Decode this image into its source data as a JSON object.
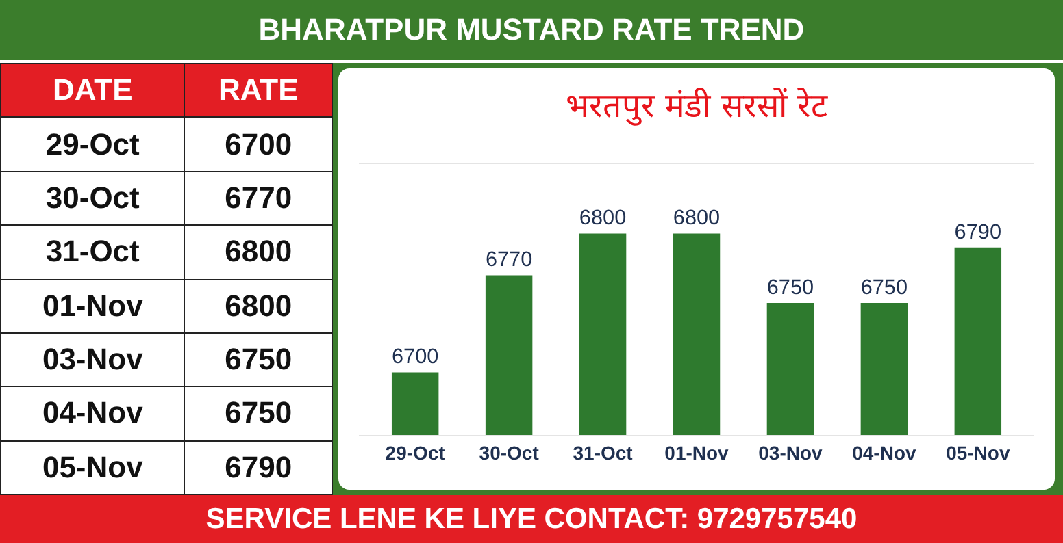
{
  "chart_data": [
    {
      "type": "other",
      "title": "BHARATPUR MUSTARD RATE TREND",
      "annotations": [
        "DATE",
        "RATE",
        "29-Oct",
        "6700",
        "30-Oct",
        "6770",
        "31-Oct",
        "6800",
        "01-Nov",
        "6800",
        "03-Nov",
        "6750",
        "04-Nov",
        "6750",
        "05-Nov",
        "6790"
      ]
    },
    {
      "type": "bar",
      "title": "भरतपुर मंडी सरसों रेट",
      "categories": [
        "29-Oct",
        "30-Oct",
        "31-Oct",
        "01-Nov",
        "03-Nov",
        "04-Nov",
        "05-Nov"
      ],
      "values": [
        6700,
        6770,
        6800,
        6800,
        6750,
        6750,
        6790
      ],
      "color": "#2e7a2e",
      "ylim": [
        6655,
        6850
      ],
      "data_labels": true,
      "grid": false,
      "legend": false,
      "annotations": [
        "SERVICE LENE KE LIYE CONTACT: 9729757540"
      ]
    }
  ]
}
